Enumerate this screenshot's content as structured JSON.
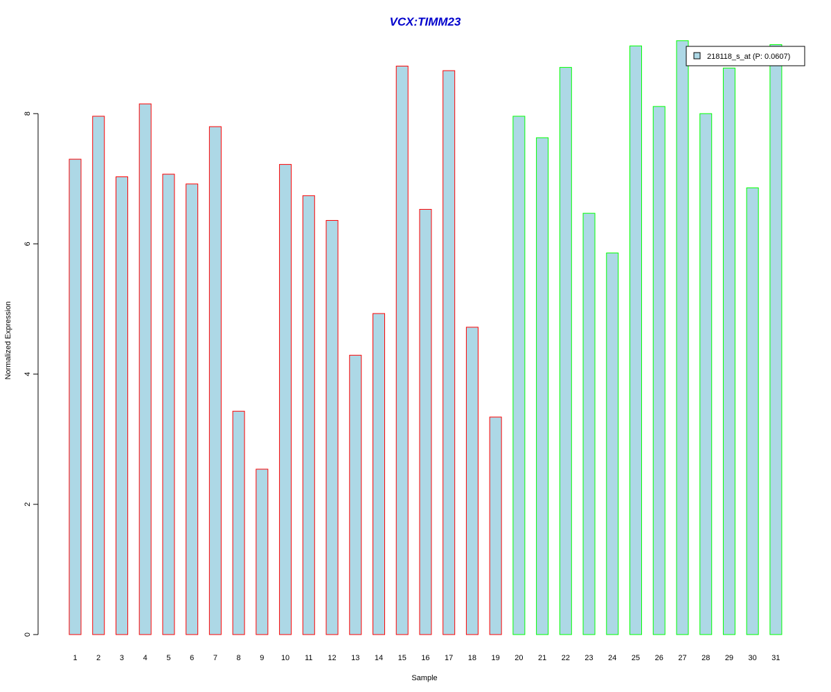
{
  "chart_data": {
    "type": "bar",
    "title": "VCX:TIMM23",
    "title_color": "#0000CC",
    "xlabel": "Sample",
    "ylabel": "Normalized Expression",
    "ylim": [
      0,
      9.1
    ],
    "yticks": [
      0,
      2,
      4,
      6,
      8
    ],
    "categories": [
      "1",
      "2",
      "3",
      "4",
      "5",
      "6",
      "7",
      "8",
      "9",
      "10",
      "11",
      "12",
      "13",
      "14",
      "15",
      "16",
      "17",
      "18",
      "19",
      "20",
      "21",
      "22",
      "23",
      "24",
      "25",
      "26",
      "27",
      "28",
      "29",
      "30",
      "31"
    ],
    "series": [
      {
        "name": "218118_s_at (P: 0.0607)",
        "fill": "#ADD8E6",
        "values": [
          7.3,
          7.96,
          7.03,
          8.15,
          7.07,
          6.92,
          7.8,
          3.43,
          2.54,
          7.22,
          6.74,
          6.36,
          4.29,
          4.93,
          8.73,
          6.53,
          8.66,
          4.72,
          3.34,
          7.96,
          7.63,
          8.71,
          6.47,
          5.86,
          9.04,
          8.11,
          9.12,
          8.0,
          8.7,
          6.86,
          9.06
        ]
      }
    ],
    "bar_border_colors": [
      "#FF0000",
      "#FF0000",
      "#FF0000",
      "#FF0000",
      "#FF0000",
      "#FF0000",
      "#FF0000",
      "#FF0000",
      "#FF0000",
      "#FF0000",
      "#FF0000",
      "#FF0000",
      "#FF0000",
      "#FF0000",
      "#FF0000",
      "#FF0000",
      "#FF0000",
      "#FF0000",
      "#FF0000",
      "#00FF00",
      "#00FF00",
      "#00FF00",
      "#00FF00",
      "#00FF00",
      "#00FF00",
      "#00FF00",
      "#00FF00",
      "#00FF00",
      "#00FF00",
      "#00FF00",
      "#00FF00"
    ],
    "legend": {
      "label": "218118_s_at (P: 0.0607)",
      "position": "top-right"
    },
    "grid": false
  }
}
